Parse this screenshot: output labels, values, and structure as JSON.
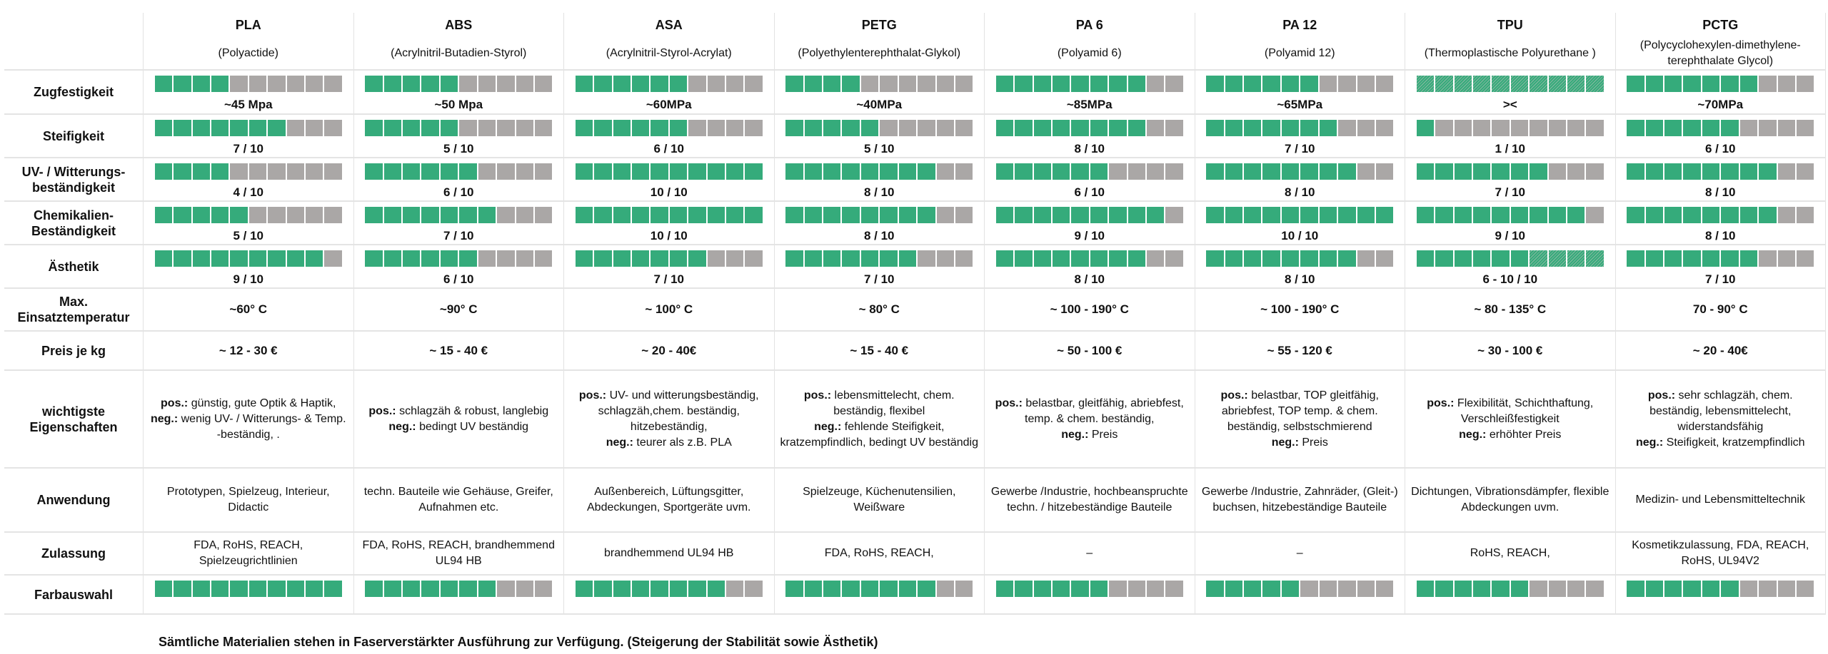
{
  "materials": [
    {
      "name": "PLA",
      "full": "(Polyactide)"
    },
    {
      "name": "ABS",
      "full": "(Acrylnitril-Butadien-Styrol)"
    },
    {
      "name": "ASA",
      "full": "(Acrylnitril-Styrol-Acrylat)"
    },
    {
      "name": "PETG",
      "full": "(Polyethylenterephthalat-Glykol)"
    },
    {
      "name": "PA 6",
      "full": "(Polyamid 6)"
    },
    {
      "name": "PA 12",
      "full": "(Polyamid 12)"
    },
    {
      "name": "TPU",
      "full": "(Thermoplastische Polyurethane )"
    },
    {
      "name": "PCTG",
      "full": "(Polycyclohexylen-dimethylene-terephthalate Glycol)"
    }
  ],
  "colors": {
    "filled": "#35ab7b",
    "empty": "#aaa7a6",
    "hatched": "#8db8a3"
  },
  "rows": [
    {
      "label": "Zugfestigkeit",
      "type": "bar",
      "cells": [
        {
          "filled": 4,
          "hatched": 0,
          "value": "~45 Mpa"
        },
        {
          "filled": 5,
          "hatched": 0,
          "value": "~50 Mpa"
        },
        {
          "filled": 6,
          "hatched": 0,
          "value": "~60MPa"
        },
        {
          "filled": 4,
          "hatched": 0,
          "value": "~40MPa"
        },
        {
          "filled": 8,
          "hatched": 0,
          "value": "~85MPa"
        },
        {
          "filled": 6,
          "hatched": 0,
          "value": "~65MPa"
        },
        {
          "filled": 0,
          "hatched": 10,
          "value": "><"
        },
        {
          "filled": 7,
          "hatched": 0,
          "value": "~70MPa"
        }
      ]
    },
    {
      "label": "Steifigkeit",
      "type": "bar",
      "cells": [
        {
          "filled": 7,
          "hatched": 0,
          "value": "7 / 10"
        },
        {
          "filled": 5,
          "hatched": 0,
          "value": "5 / 10"
        },
        {
          "filled": 6,
          "hatched": 0,
          "value": "6 / 10"
        },
        {
          "filled": 5,
          "hatched": 0,
          "value": "5 / 10"
        },
        {
          "filled": 8,
          "hatched": 0,
          "value": "8 / 10"
        },
        {
          "filled": 7,
          "hatched": 0,
          "value": "7 / 10"
        },
        {
          "filled": 1,
          "hatched": 0,
          "value": "1 / 10"
        },
        {
          "filled": 6,
          "hatched": 0,
          "value": "6 / 10"
        }
      ]
    },
    {
      "label": "UV- / Witterungs-beständigkeit",
      "type": "bar",
      "cells": [
        {
          "filled": 4,
          "hatched": 0,
          "value": "4 / 10"
        },
        {
          "filled": 6,
          "hatched": 0,
          "value": "6 / 10"
        },
        {
          "filled": 10,
          "hatched": 0,
          "value": "10 / 10"
        },
        {
          "filled": 8,
          "hatched": 0,
          "value": "8 / 10"
        },
        {
          "filled": 6,
          "hatched": 0,
          "value": "6 / 10"
        },
        {
          "filled": 8,
          "hatched": 0,
          "value": "8 / 10"
        },
        {
          "filled": 7,
          "hatched": 0,
          "value": "7 / 10"
        },
        {
          "filled": 8,
          "hatched": 0,
          "value": "8 / 10"
        }
      ]
    },
    {
      "label": "Chemikalien-Beständigkeit",
      "type": "bar",
      "cells": [
        {
          "filled": 5,
          "hatched": 0,
          "value": "5 / 10"
        },
        {
          "filled": 7,
          "hatched": 0,
          "value": "7 / 10"
        },
        {
          "filled": 10,
          "hatched": 0,
          "value": "10 / 10"
        },
        {
          "filled": 8,
          "hatched": 0,
          "value": "8 / 10"
        },
        {
          "filled": 9,
          "hatched": 0,
          "value": "9 / 10"
        },
        {
          "filled": 10,
          "hatched": 0,
          "value": "10 / 10"
        },
        {
          "filled": 9,
          "hatched": 0,
          "value": "9 / 10"
        },
        {
          "filled": 8,
          "hatched": 0,
          "value": "8 / 10"
        }
      ]
    },
    {
      "label": "Ästhetik",
      "type": "bar",
      "cells": [
        {
          "filled": 9,
          "hatched": 0,
          "value": "9 / 10"
        },
        {
          "filled": 6,
          "hatched": 0,
          "value": "6 / 10"
        },
        {
          "filled": 7,
          "hatched": 0,
          "value": "7 / 10"
        },
        {
          "filled": 7,
          "hatched": 0,
          "value": "7 / 10"
        },
        {
          "filled": 8,
          "hatched": 0,
          "value": "8 / 10"
        },
        {
          "filled": 8,
          "hatched": 0,
          "value": "8 / 10"
        },
        {
          "filled": 6,
          "hatched": 4,
          "value": "6 - 10 / 10"
        },
        {
          "filled": 7,
          "hatched": 0,
          "value": "7 / 10"
        }
      ]
    },
    {
      "label": "Max. Einsatztemperatur",
      "type": "bold",
      "cells": [
        "~60° C",
        "~90° C",
        "~ 100° C",
        "~ 80° C",
        "~ 100 - 190° C",
        "~ 100 - 190° C",
        "~ 80 - 135° C",
        "70 - 90° C"
      ]
    },
    {
      "label": "Preis je kg",
      "type": "bold",
      "cells": [
        "~ 12 - 30 €",
        "~ 15 - 40 €",
        "~ 20 -  40€",
        "~ 15 - 40 €",
        "~ 50 - 100 €",
        "~ 55 - 120 €",
        "~ 30 - 100 €",
        "~ 20 - 40€"
      ]
    },
    {
      "label": "wichtigste Eigenschaften",
      "type": "posneg",
      "pos_label": "pos.:",
      "neg_label": "neg.:",
      "cells": [
        {
          "pos": "günstig, gute Optik & Haptik,",
          "neg": "wenig UV- / Witterungs- & Temp. -beständig, ."
        },
        {
          "pos": "schlagzäh & robust, langlebig",
          "neg": "bedingt UV beständig"
        },
        {
          "pos": "UV- und witterungsbeständig, schlagzäh,chem. beständig, hitzebeständig,",
          "neg": "teurer als z.B. PLA"
        },
        {
          "pos": "lebensmittelecht, chem. beständig, flexibel",
          "neg": "fehlende Steifigkeit, kratzempfindlich, bedingt UV beständig"
        },
        {
          "pos": "belastbar, gleitfähig, abriebfest, temp. & chem. beständig,",
          "neg": "Preis"
        },
        {
          "pos": "belastbar, TOP gleitfähig, abriebfest, TOP temp. & chem. beständig, selbstschmierend",
          "neg": "Preis"
        },
        {
          "pos": "Flexibilität, Schichthaftung, Verschleißfestigkeit",
          "neg": "erhöhter Preis"
        },
        {
          "pos": "sehr schlagzäh, chem. beständig, lebensmittelecht, widerstandsfähig",
          "neg": "Steifigkeit, kratzempfindlich"
        }
      ]
    },
    {
      "label": "Anwendung",
      "type": "text",
      "cells": [
        "Prototypen, Spielzeug, Interieur, Didactic",
        "techn. Bauteile wie Gehäuse, Greifer, Aufnahmen etc.",
        "Außenbereich, Lüftungsgitter, Abdeckungen, Sportgeräte uvm.",
        "Spielzeuge, Küchenutensilien, Weißware",
        "Gewerbe /Industrie, hochbeanspruchte techn. / hitzebeständige Bauteile",
        "Gewerbe /Industrie, Zahnräder, (Gleit-) buchsen, hitzebeständige Bauteile",
        "Dichtungen, Vibrationsdämpfer, flexible Abdeckungen uvm.",
        "Medizin- und Lebensmitteltechnik"
      ]
    },
    {
      "label": "Zulassung",
      "type": "text",
      "cells": [
        "FDA, RoHS, REACH, Spielzeugrichtlinien",
        "FDA, RoHS, REACH, brandhemmend UL94 HB",
        "brandhemmend UL94 HB",
        "FDA, RoHS, REACH,",
        "–",
        "–",
        "RoHS, REACH,",
        "Kosmetikzulassung, FDA, REACH, RoHS, UL94V2"
      ]
    },
    {
      "label": "Farbauswahl",
      "type": "bar",
      "cells": [
        {
          "filled": 10,
          "hatched": 0
        },
        {
          "filled": 7,
          "hatched": 0
        },
        {
          "filled": 8,
          "hatched": 0
        },
        {
          "filled": 8,
          "hatched": 0
        },
        {
          "filled": 6,
          "hatched": 0
        },
        {
          "filled": 5,
          "hatched": 0
        },
        {
          "filled": 6,
          "hatched": 0
        },
        {
          "filled": 6,
          "hatched": 0
        }
      ]
    }
  ],
  "footer": "Sämtliche Materialien stehen in Faserverstärkter Ausführung zur Verfügung. (Steigerung der Stabilität sowie Ästhetik)"
}
